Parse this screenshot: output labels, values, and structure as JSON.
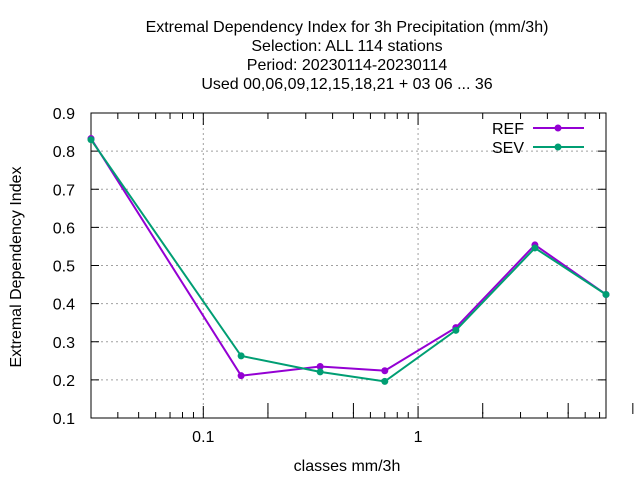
{
  "chart_data": {
    "type": "line",
    "title_lines": [
      "Extremal Dependency Index  for 3h Precipitation (mm/3h)",
      "Selection: ALL    114 stations",
      "Period: 20230114-20230114",
      "Used  00,06,09,12,15,18,21  + 03 06 ... 36"
    ],
    "xlabel": "classes mm/3h",
    "ylabel": "Extremal Dependency Index",
    "x_scale": "log",
    "xlim": [
      0.03,
      7.5
    ],
    "ylim": [
      0.1,
      0.9
    ],
    "x_ticks": [
      0.1,
      1
    ],
    "x_tick_labels": [
      "0.1",
      "1"
    ],
    "y_ticks": [
      0.1,
      0.2,
      0.3,
      0.4,
      0.5,
      0.6,
      0.7,
      0.8,
      0.9
    ],
    "y_tick_labels": [
      "0.1",
      "0.2",
      "0.3",
      "0.4",
      "0.5",
      "0.6",
      "0.7",
      "0.8",
      "0.9"
    ],
    "grid": true,
    "legend_position": "top-right",
    "series": [
      {
        "name": "REF",
        "color": "#9400d3",
        "x": [
          0.03,
          0.15,
          0.35,
          0.7,
          1.5,
          3.5,
          7.5
        ],
        "y": [
          0.833,
          0.211,
          0.235,
          0.224,
          0.337,
          0.554,
          0.424
        ]
      },
      {
        "name": "SEV",
        "color": "#009e73",
        "x": [
          0.03,
          0.15,
          0.35,
          0.7,
          1.5,
          3.5,
          7.5
        ],
        "y": [
          0.83,
          0.263,
          0.221,
          0.196,
          0.33,
          0.546,
          0.424
        ]
      }
    ]
  }
}
